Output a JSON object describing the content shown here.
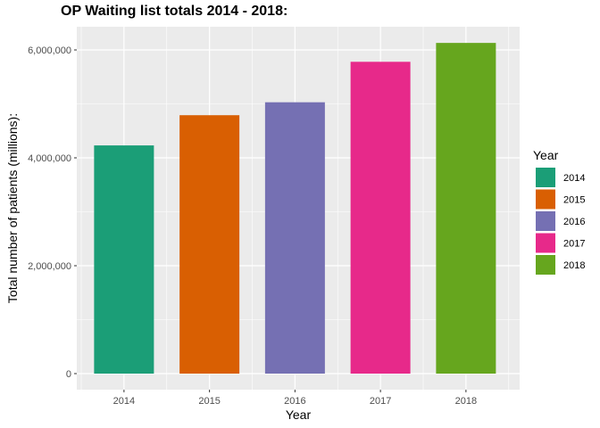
{
  "chart_data": {
    "type": "bar",
    "title": "OP Waiting list totals 2014 - 2018:",
    "xlabel": "Year",
    "ylabel": "Total number of patients (millions):",
    "categories": [
      "2014",
      "2015",
      "2016",
      "2017",
      "2018"
    ],
    "values": [
      4230000,
      4790000,
      5030000,
      5780000,
      6130000
    ],
    "colors": [
      "#1b9e77",
      "#d95f02",
      "#7570b3",
      "#e7298a",
      "#66a61e"
    ],
    "ylim": [
      0,
      6300000
    ],
    "yticks": [
      0,
      2000000,
      4000000,
      6000000
    ],
    "ytick_labels": [
      "0",
      "2,000,000",
      "4,000,000",
      "6,000,000"
    ],
    "grid": true,
    "legend": {
      "title": "Year",
      "position": "right",
      "entries": [
        "2014",
        "2015",
        "2016",
        "2017",
        "2018"
      ]
    }
  }
}
